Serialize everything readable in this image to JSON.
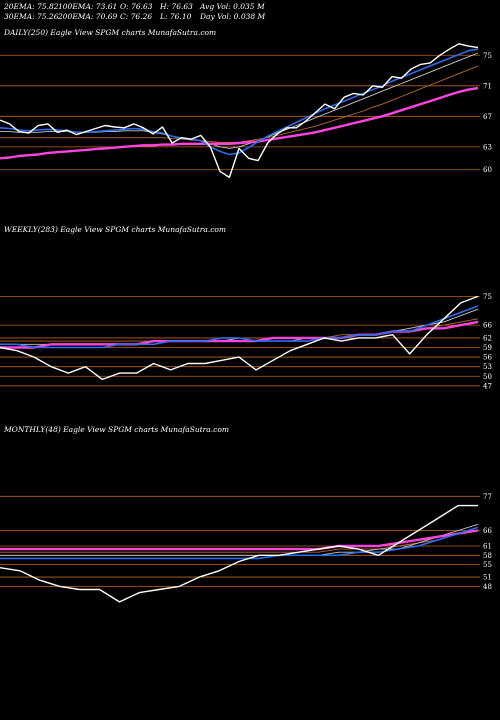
{
  "header": {
    "ema20": "20EMA: 75.82",
    "ema100": "100EMA: 73.61",
    "open": "O: 76.63",
    "high": "H: 76.63",
    "avg_vol": "Avg Vol: 0.035 M",
    "ema30": "30EMA: 75.26",
    "ema200": "200EMA: 70.69",
    "close": "C: 76.26",
    "low": "L: 76.10",
    "day_vol": "Day Vol: 0.038 M"
  },
  "colors": {
    "background": "#000000",
    "price": "#ffffff",
    "ema_blue": "#2a6cf0",
    "ema_magenta": "#ff44dd",
    "ema_brown": "#b86a28",
    "ema_gray": "#c8c8c8",
    "level_line": "#b8641e"
  },
  "chart_data": [
    {
      "type": "line",
      "title": "DAILY(250) Eagle  View  SPGM charts MunafaSutra.com",
      "ylim": [
        58,
        77
      ],
      "levels": [
        75,
        71,
        67,
        63,
        60
      ],
      "x": [
        0,
        5,
        10,
        15,
        20,
        25,
        30,
        35,
        40,
        45,
        50,
        55,
        60,
        65,
        70,
        75,
        80,
        85,
        90,
        95,
        100,
        105,
        110,
        115,
        120,
        125,
        130,
        135,
        140,
        145,
        150,
        155,
        160,
        165,
        170,
        175,
        180,
        185,
        190,
        195,
        200,
        205,
        210,
        215,
        220,
        225,
        230,
        235,
        240,
        245,
        250
      ],
      "series": [
        {
          "role": "price",
          "values": [
            66.5,
            66.0,
            65.0,
            64.8,
            65.8,
            66.0,
            64.9,
            65.2,
            64.6,
            65.0,
            65.4,
            65.8,
            65.6,
            65.5,
            66.0,
            65.5,
            64.7,
            65.6,
            63.5,
            64.2,
            64.0,
            64.5,
            63.0,
            59.8,
            59.0,
            62.8,
            61.5,
            61.2,
            63.5,
            64.7,
            65.5,
            65.5,
            66.4,
            67.5,
            68.6,
            68.0,
            69.5,
            70.0,
            69.8,
            71.0,
            70.8,
            72.2,
            72.0,
            73.2,
            73.8,
            74.0,
            75.0,
            75.8,
            76.5,
            76.2,
            76.0
          ]
        },
        {
          "role": "ema20",
          "values": [
            65.5,
            65.4,
            65.2,
            65.1,
            65.2,
            65.3,
            65.2,
            65.1,
            64.9,
            64.9,
            65.0,
            65.1,
            65.2,
            65.3,
            65.4,
            65.3,
            65.0,
            64.8,
            64.4,
            64.1,
            64.0,
            63.8,
            63.0,
            62.4,
            62.0,
            62.2,
            62.9,
            63.7,
            64.4,
            65.0,
            65.6,
            66.2,
            66.8,
            67.4,
            68.0,
            68.5,
            69.0,
            69.5,
            70.0,
            70.5,
            71.0,
            71.6,
            72.1,
            72.6,
            73.1,
            73.6,
            74.1,
            74.6,
            75.1,
            75.6,
            75.8
          ]
        },
        {
          "role": "ema30",
          "values": [
            65.0,
            65.0,
            64.9,
            64.9,
            64.9,
            65.0,
            65.0,
            65.0,
            64.9,
            64.9,
            64.9,
            65.0,
            65.0,
            65.1,
            65.1,
            65.1,
            64.9,
            64.7,
            64.4,
            64.2,
            64.0,
            63.8,
            63.4,
            63.0,
            62.8,
            63.0,
            63.4,
            63.8,
            64.3,
            64.8,
            65.3,
            65.8,
            66.3,
            66.8,
            67.3,
            67.8,
            68.3,
            68.8,
            69.3,
            69.8,
            70.3,
            70.8,
            71.3,
            71.8,
            72.3,
            72.8,
            73.3,
            73.8,
            74.3,
            74.8,
            75.3
          ]
        },
        {
          "role": "ema100",
          "values": [
            64.2,
            64.2,
            64.2,
            64.2,
            64.2,
            64.2,
            64.2,
            64.2,
            64.2,
            64.2,
            64.2,
            64.2,
            64.2,
            64.2,
            64.2,
            64.2,
            64.2,
            64.2,
            64.1,
            64.0,
            63.9,
            63.8,
            63.7,
            63.6,
            63.6,
            63.6,
            63.8,
            64.0,
            64.2,
            64.5,
            64.8,
            65.1,
            65.4,
            65.7,
            66.1,
            66.5,
            66.9,
            67.3,
            67.7,
            68.2,
            68.6,
            69.1,
            69.6,
            70.1,
            70.6,
            71.1,
            71.6,
            72.1,
            72.6,
            73.1,
            73.6
          ]
        },
        {
          "role": "ema200",
          "values": [
            61.5,
            61.6,
            61.8,
            61.9,
            62.0,
            62.2,
            62.3,
            62.4,
            62.5,
            62.6,
            62.7,
            62.8,
            62.9,
            63.0,
            63.1,
            63.2,
            63.2,
            63.3,
            63.3,
            63.4,
            63.4,
            63.4,
            63.4,
            63.4,
            63.4,
            63.5,
            63.6,
            63.7,
            63.9,
            64.1,
            64.3,
            64.5,
            64.7,
            64.9,
            65.2,
            65.5,
            65.8,
            66.1,
            66.4,
            66.7,
            67.0,
            67.4,
            67.8,
            68.2,
            68.6,
            69.0,
            69.4,
            69.8,
            70.2,
            70.5,
            70.7
          ]
        }
      ]
    },
    {
      "type": "line",
      "title": "WEEKLY(283) Eagle  View  SPGM charts MunafaSutra.com",
      "ylim": [
        41,
        77
      ],
      "levels": [
        75,
        66,
        62,
        59,
        56,
        53,
        50,
        47
      ],
      "x": [
        0,
        10,
        20,
        30,
        40,
        50,
        60,
        70,
        80,
        90,
        100,
        110,
        120,
        130,
        140,
        150,
        160,
        170,
        180,
        190,
        200,
        210,
        220,
        230,
        240,
        250,
        260,
        270,
        280
      ],
      "series": [
        {
          "role": "price",
          "values": [
            59,
            58,
            56,
            53,
            51,
            53,
            49,
            51,
            51,
            54,
            52,
            54,
            54,
            55,
            56,
            52,
            55,
            58,
            60,
            62,
            61,
            62,
            62,
            63,
            57,
            63,
            68,
            73,
            75
          ]
        },
        {
          "role": "ema20",
          "values": [
            60,
            60,
            59,
            59,
            59,
            59,
            59,
            60,
            60,
            60,
            61,
            61,
            61,
            62,
            62,
            61,
            61,
            61,
            61,
            62,
            62,
            63,
            63,
            64,
            64,
            66,
            68,
            70,
            72
          ]
        },
        {
          "role": "ema30",
          "values": [
            60,
            60,
            60,
            60,
            60,
            60,
            60,
            60,
            60,
            61,
            61,
            61,
            61,
            61,
            62,
            61,
            61,
            61,
            62,
            62,
            62,
            63,
            63,
            64,
            65,
            66,
            67,
            69,
            71
          ]
        },
        {
          "role": "ema100",
          "values": [
            61,
            61,
            61,
            61,
            61,
            61,
            61,
            61,
            61,
            61,
            61,
            61,
            61,
            62,
            62,
            62,
            62,
            62,
            62,
            62,
            63,
            63,
            63,
            64,
            64,
            65,
            66,
            67,
            68
          ]
        },
        {
          "role": "ema200",
          "values": [
            59,
            59,
            59,
            60,
            60,
            60,
            60,
            60,
            60,
            61,
            61,
            61,
            61,
            61,
            61,
            61,
            62,
            62,
            62,
            62,
            62,
            63,
            63,
            64,
            64,
            65,
            65,
            66,
            67
          ]
        }
      ]
    },
    {
      "type": "line",
      "title": "MONTHLY(48) Eagle  View  SPGM charts MunafaSutra.com",
      "ylim": [
        42,
        80
      ],
      "levels": [
        77,
        66,
        61,
        58,
        55,
        51,
        48
      ],
      "x": [
        0,
        2,
        4,
        6,
        8,
        10,
        12,
        14,
        16,
        18,
        20,
        22,
        24,
        26,
        28,
        30,
        32,
        34,
        36,
        38,
        40,
        42,
        44,
        46,
        48
      ],
      "series": [
        {
          "role": "price",
          "values": [
            54,
            53,
            50,
            48,
            47,
            47,
            43,
            46,
            47,
            48,
            51,
            53,
            56,
            58,
            58,
            59,
            60,
            61,
            60,
            58,
            62,
            66,
            70,
            74,
            74
          ]
        },
        {
          "role": "ema20",
          "values": [
            57,
            57,
            57,
            57,
            57,
            57,
            57,
            57,
            57,
            57,
            57,
            57,
            57,
            57,
            58,
            58,
            58,
            58,
            59,
            59,
            60,
            61,
            63,
            65,
            67
          ]
        },
        {
          "role": "ema30",
          "values": [
            58,
            58,
            58,
            58,
            58,
            58,
            58,
            58,
            58,
            58,
            58,
            58,
            58,
            58,
            58,
            58,
            58,
            59,
            59,
            60,
            60,
            62,
            64,
            66,
            68
          ]
        },
        {
          "role": "ema100",
          "values": [
            59,
            59,
            59,
            59,
            59,
            59,
            59,
            59,
            59,
            59,
            59,
            59,
            59,
            59,
            59,
            59,
            59,
            60,
            60,
            60,
            61,
            62,
            63,
            65,
            66
          ]
        },
        {
          "role": "ema200",
          "values": [
            60,
            60,
            60,
            60,
            60,
            60,
            60,
            60,
            60,
            60,
            60,
            60,
            60,
            60,
            60,
            60,
            60,
            61,
            61,
            61,
            62,
            63,
            64,
            65,
            66
          ]
        }
      ]
    }
  ]
}
